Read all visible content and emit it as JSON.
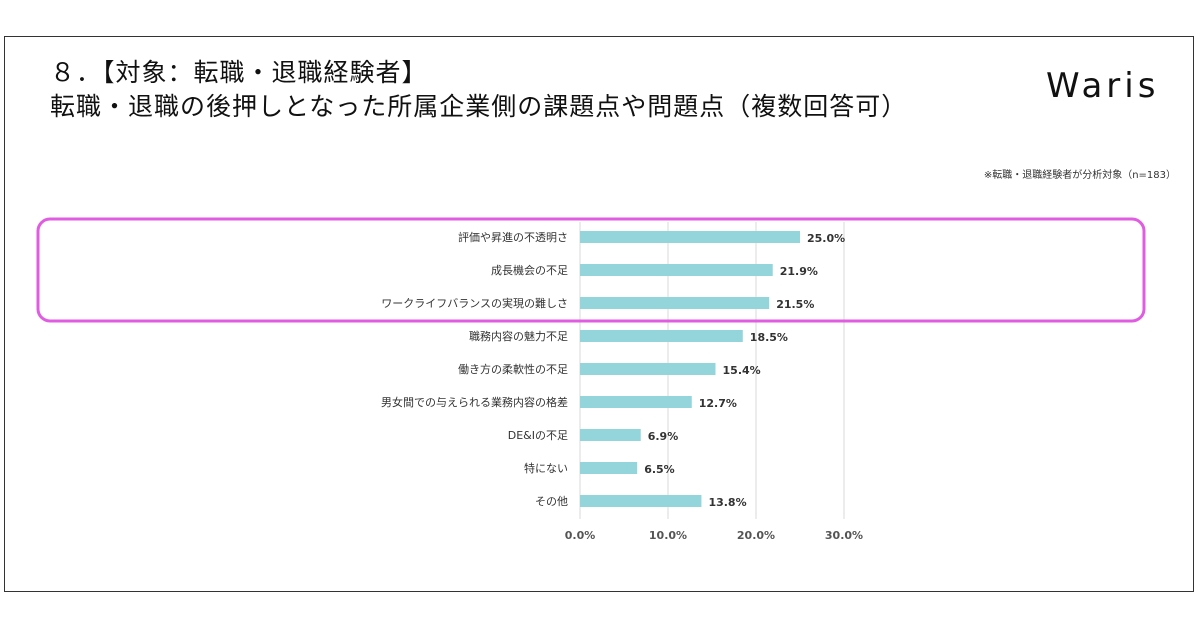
{
  "header": {
    "title_line1": "８．【対象：転職・退職経験者】",
    "title_line2": "転職・退職の後押しとなった所属企業側の課題点や問題点（複数回答可）",
    "brand": "Waris",
    "note": "※転職・退職経験者が分析対象（n=183）"
  },
  "colors": {
    "bar": "#93d5da",
    "highlight": "#e05ce0",
    "grid": "#d9d9d9"
  },
  "chart_data": {
    "type": "bar",
    "orientation": "horizontal",
    "categories": [
      "評価や昇進の不透明さ",
      "成長機会の不足",
      "ワークライフバランスの実現の難しさ",
      "職務内容の魅力不足",
      "働き方の柔軟性の不足",
      "男女間での与えられる業務内容の格差",
      "DE&Iの不足",
      "特にない",
      "その他"
    ],
    "values": [
      25.0,
      21.9,
      21.5,
      18.5,
      15.4,
      12.7,
      6.9,
      6.5,
      13.8
    ],
    "value_labels": [
      "25.0%",
      "21.9%",
      "21.5%",
      "18.5%",
      "15.4%",
      "12.7%",
      "6.9%",
      "6.5%",
      "13.8%"
    ],
    "xlim": [
      0,
      30
    ],
    "xticks": [
      0,
      10,
      20,
      30
    ],
    "xtick_labels": [
      "0.0%",
      "10.0%",
      "20.0%",
      "30.0%"
    ],
    "grid": true,
    "highlighted_categories": [
      0,
      1,
      2
    ]
  }
}
